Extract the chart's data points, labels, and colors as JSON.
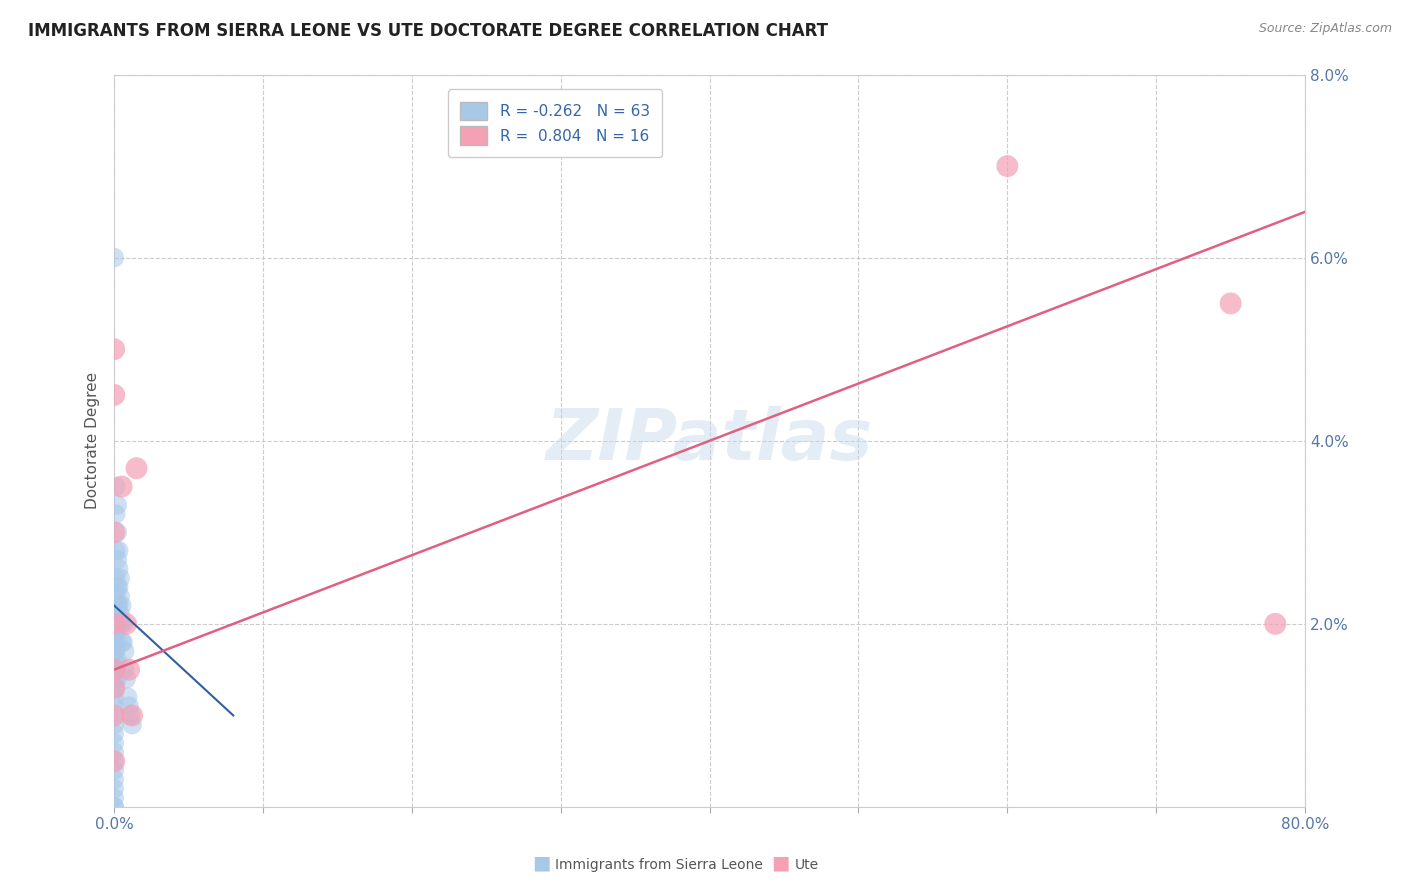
{
  "title": "IMMIGRANTS FROM SIERRA LEONE VS UTE DOCTORATE DEGREE CORRELATION CHART",
  "source": "Source: ZipAtlas.com",
  "ylabel": "Doctorate Degree",
  "legend_label1": "Immigrants from Sierra Leone",
  "legend_label2": "Ute",
  "R1": -0.262,
  "N1": 63,
  "R2": 0.804,
  "N2": 16,
  "color_blue": "#a8c8e8",
  "color_pink": "#f4a0b5",
  "trendline_blue": "#3060a0",
  "trendline_pink": "#e06080",
  "watermark_color": "#c8daeeff",
  "background_color": "#ffffff",
  "xlim": [
    0.0,
    0.8
  ],
  "ylim": [
    0.0,
    0.08
  ],
  "xticks": [
    0.0,
    0.1,
    0.2,
    0.3,
    0.4,
    0.5,
    0.6,
    0.7,
    0.8
  ],
  "yticks": [
    0.0,
    0.02,
    0.04,
    0.06,
    0.08
  ],
  "blue_dots_x": [
    0.0,
    0.0,
    0.0,
    0.0,
    0.0,
    0.0,
    0.0,
    0.0,
    0.0,
    0.0,
    0.0,
    0.0,
    0.0,
    0.0,
    0.0,
    0.0,
    0.0,
    0.0,
    0.0,
    0.0,
    0.0,
    0.0,
    0.0,
    0.0,
    0.001,
    0.001,
    0.001,
    0.001,
    0.001,
    0.001,
    0.001,
    0.001,
    0.001,
    0.001,
    0.002,
    0.002,
    0.002,
    0.002,
    0.002,
    0.002,
    0.002,
    0.002,
    0.002,
    0.003,
    0.003,
    0.003,
    0.003,
    0.003,
    0.004,
    0.004,
    0.004,
    0.005,
    0.005,
    0.005,
    0.006,
    0.006,
    0.007,
    0.007,
    0.008,
    0.009,
    0.01,
    0.011,
    0.012
  ],
  "blue_dots_y": [
    0.06,
    0.022,
    0.02,
    0.019,
    0.018,
    0.017,
    0.016,
    0.015,
    0.014,
    0.013,
    0.012,
    0.011,
    0.01,
    0.009,
    0.008,
    0.007,
    0.006,
    0.005,
    0.004,
    0.003,
    0.002,
    0.001,
    0.0,
    0.0,
    0.035,
    0.032,
    0.028,
    0.025,
    0.023,
    0.021,
    0.019,
    0.017,
    0.015,
    0.013,
    0.033,
    0.03,
    0.027,
    0.024,
    0.022,
    0.02,
    0.018,
    0.016,
    0.014,
    0.028,
    0.026,
    0.024,
    0.022,
    0.02,
    0.025,
    0.023,
    0.021,
    0.022,
    0.02,
    0.018,
    0.02,
    0.018,
    0.017,
    0.015,
    0.014,
    0.012,
    0.011,
    0.01,
    0.009
  ],
  "pink_dots_x": [
    0.0,
    0.0,
    0.0,
    0.0,
    0.0,
    0.0,
    0.0,
    0.0,
    0.005,
    0.008,
    0.01,
    0.012,
    0.015,
    0.6,
    0.75,
    0.78
  ],
  "pink_dots_y": [
    0.05,
    0.045,
    0.03,
    0.02,
    0.015,
    0.013,
    0.01,
    0.005,
    0.035,
    0.02,
    0.015,
    0.01,
    0.037,
    0.07,
    0.055,
    0.02
  ],
  "blue_trendline_x": [
    0.0,
    0.08
  ],
  "blue_trendline_y": [
    0.022,
    0.01
  ],
  "pink_trendline_x": [
    0.0,
    0.8
  ],
  "pink_trendline_y": [
    0.015,
    0.065
  ]
}
